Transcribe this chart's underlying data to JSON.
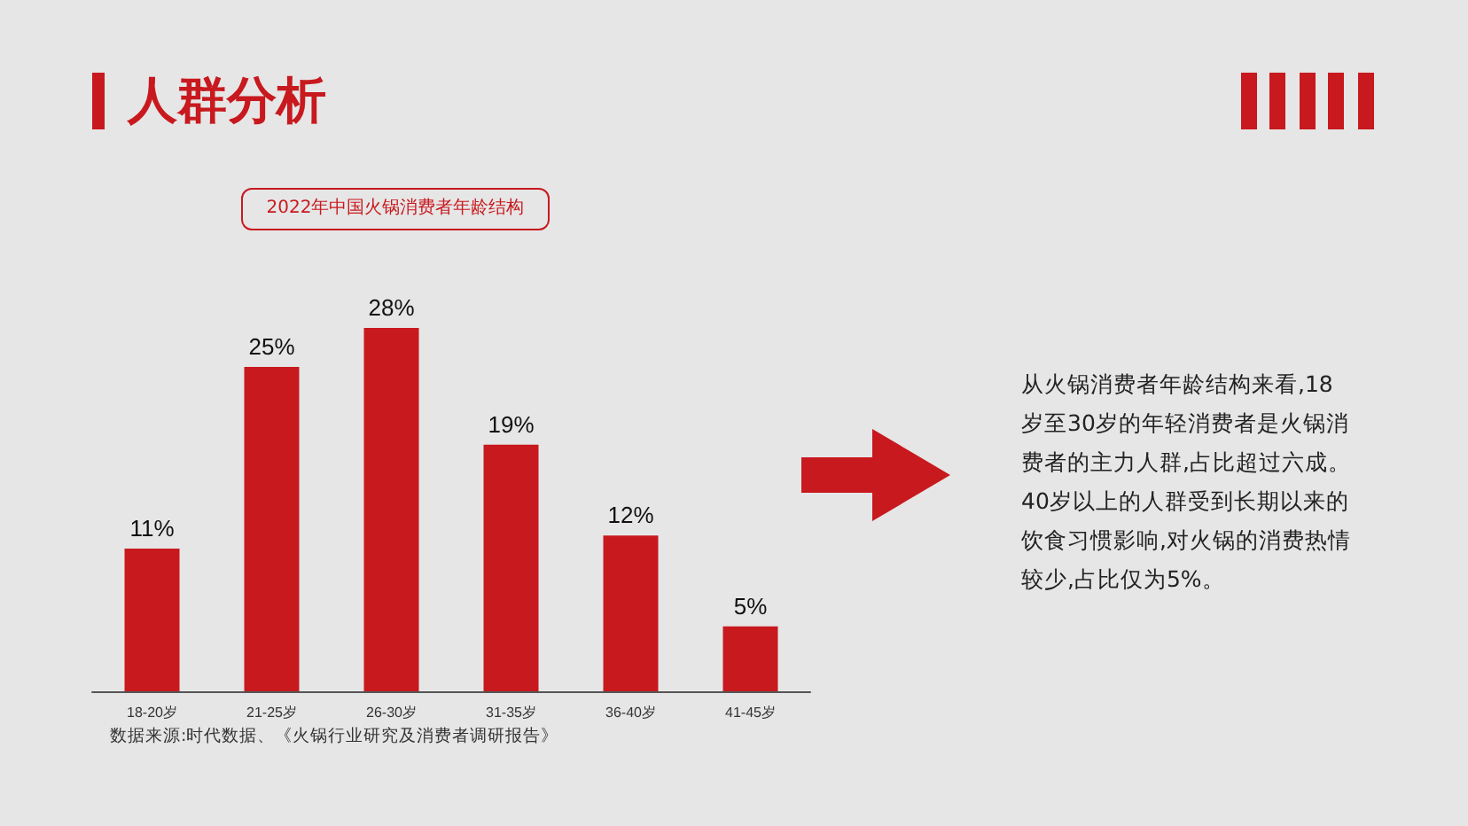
{
  "chart_data": {
    "type": "bar",
    "title": "人群分析",
    "subtitle": "2022年中国火锅消费者年龄结构",
    "categories": [
      "18-20岁",
      "21-25岁",
      "26-30岁",
      "31-35岁",
      "36-40岁",
      "41-45岁"
    ],
    "values": [
      11,
      25,
      28,
      19,
      12,
      5
    ],
    "value_labels": [
      "11%",
      "25%",
      "28%",
      "19%",
      "12%",
      "5%"
    ],
    "color": "#c8191e",
    "annotations": [
      "数据来源:时代数据、《火锅行业研究及消费者调研报告》",
      "从火锅消费者年龄结构来看,18岁至30岁的年轻消费者是火锅消费者的主力人群,占比超过六成。40岁以上的人群受到长期以来的饮食习惯影响,对火锅的消费热情较少,占比仅为5%。"
    ]
  }
}
